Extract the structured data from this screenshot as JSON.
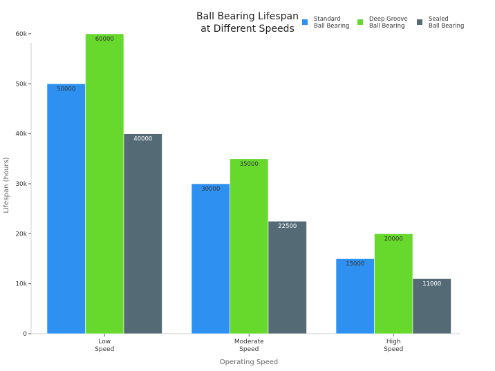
{
  "chart_data": {
    "type": "bar",
    "title_lines": [
      "Ball Bearing Lifespan",
      "at Different Speeds"
    ],
    "xlabel": "Operating Speed",
    "ylabel": "Lifespan (hours)",
    "categories": [
      [
        "Low",
        "Speed"
      ],
      [
        "Moderate",
        "Speed"
      ],
      [
        "High",
        "Speed"
      ]
    ],
    "series": [
      {
        "name_lines": [
          "Standard",
          "Ball Bearing"
        ],
        "color": "#2e90f0",
        "label_color": "#333333",
        "values": [
          50000,
          30000,
          15000
        ]
      },
      {
        "name_lines": [
          "Deep Groove",
          "Ball Bearing"
        ],
        "color": "#66d92c",
        "label_color": "#333333",
        "values": [
          60000,
          35000,
          20000
        ]
      },
      {
        "name_lines": [
          "Sealed",
          "Ball Bearing"
        ],
        "color": "#546a75",
        "label_color": "#ffffff",
        "values": [
          40000,
          22500,
          11000
        ]
      }
    ],
    "yticks": [
      0,
      10000,
      20000,
      30000,
      40000,
      50000,
      60000
    ],
    "ytick_labels": [
      "0",
      "10k",
      "20k",
      "30k",
      "40k",
      "50k",
      "60k"
    ],
    "ylim": [
      0,
      64000
    ],
    "grid": false,
    "legend_position": "top-right"
  }
}
